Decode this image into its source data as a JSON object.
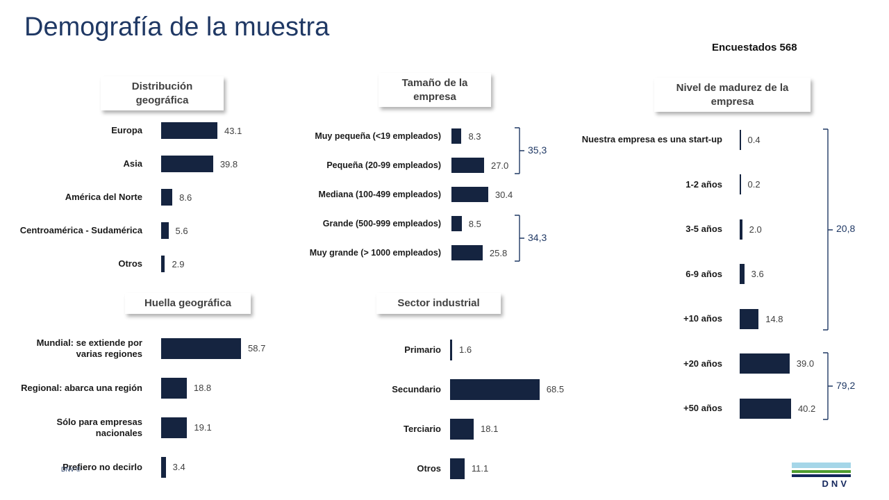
{
  "slide": {
    "title": "Demografía de la muestra",
    "respondents_label": "Encuestados 568",
    "footer_copyright": "DNV ©",
    "logo_text": "DNV"
  },
  "colors": {
    "bar": "#152440",
    "title": "#1F3864",
    "bracket": "#1F3864",
    "logo_lightblue": "#A5D6E8",
    "logo_green": "#4E9C2F",
    "logo_navy": "#13265C"
  },
  "chart_data": [
    {
      "type": "bar",
      "orientation": "horizontal",
      "title": "Distribución geográfica",
      "categories": [
        "Europa",
        "Asia",
        "América del Norte",
        "Centroamérica - Sudamérica",
        "Otros"
      ],
      "values": [
        43.1,
        39.8,
        8.6,
        5.6,
        2.9
      ],
      "xlabel": "",
      "ylabel": "",
      "grid": false,
      "legend": "none",
      "value_labels": true
    },
    {
      "type": "bar",
      "orientation": "horizontal",
      "title": "Tamaño de la empresa",
      "categories": [
        "Muy pequeña (<19 empleados)",
        "Pequeña (20-99 empleados)",
        "Mediana (100-499 empleados)",
        "Grande (500-999 empleados)",
        "Muy grande (> 1000 empleados)"
      ],
      "values": [
        8.3,
        27.0,
        30.4,
        8.5,
        25.8
      ],
      "annotations": [
        {
          "label": "35,3",
          "rows": [
            0,
            1
          ]
        },
        {
          "label": "34,3",
          "rows": [
            3,
            4
          ]
        }
      ],
      "xlabel": "",
      "ylabel": "",
      "grid": false,
      "legend": "none",
      "value_labels": true
    },
    {
      "type": "bar",
      "orientation": "horizontal",
      "title": "Nivel de madurez de la empresa",
      "categories": [
        "Nuestra empresa es una start-up",
        "1-2 años",
        "3-5 años",
        "6-9 años",
        "+10 años",
        "+20 años",
        "+50 años"
      ],
      "values": [
        0.4,
        0.2,
        2.0,
        3.6,
        14.8,
        39.0,
        40.2
      ],
      "annotations": [
        {
          "label": "20,8",
          "rows": [
            0,
            4
          ]
        },
        {
          "label": "79,2",
          "rows": [
            5,
            6
          ]
        }
      ],
      "xlabel": "",
      "ylabel": "",
      "grid": false,
      "legend": "none",
      "value_labels": true
    },
    {
      "type": "bar",
      "orientation": "horizontal",
      "title": "Huella geográfica",
      "categories": [
        "Mundial: se extiende por varias regiones",
        "Regional: abarca una región",
        "Sólo para empresas nacionales",
        "Prefiero no decirlo"
      ],
      "values": [
        58.7,
        18.8,
        19.1,
        3.4
      ],
      "xlabel": "",
      "ylabel": "",
      "grid": false,
      "legend": "none",
      "value_labels": true
    },
    {
      "type": "bar",
      "orientation": "horizontal",
      "title": "Sector industrial",
      "categories": [
        "Primario",
        "Secundario",
        "Terciario",
        "Otros"
      ],
      "values": [
        1.6,
        68.5,
        18.1,
        11.1
      ],
      "xlabel": "",
      "ylabel": "",
      "grid": false,
      "legend": "none",
      "value_labels": true
    }
  ]
}
